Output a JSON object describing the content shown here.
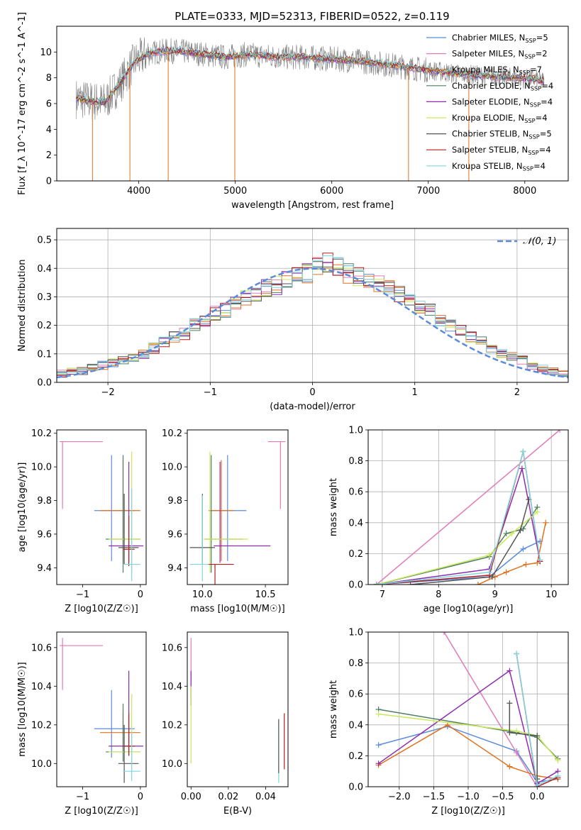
{
  "figure": {
    "title": "PLATE=0333, MJD=52313, FIBERID=0522, z=0.119"
  },
  "models": [
    {
      "label": "Chabrier MILES, N_{SSP}=5",
      "name": "Chabrier MILES",
      "nssp": "5",
      "color": "#5b8cdb"
    },
    {
      "label": "Salpeter MILES, N_{SSP}=2",
      "name": "Salpeter MILES",
      "nssp": "2",
      "color": "#e27cb8"
    },
    {
      "label": "Kroupa MILES, N_{SSP}=7",
      "name": "Kroupa MILES",
      "nssp": "7",
      "color": "#e2711d"
    },
    {
      "label": "Chabrier ELODIE, N_{SSP}=4",
      "name": "Chabrier ELODIE",
      "nssp": "4",
      "color": "#4f7f61"
    },
    {
      "label": "Salpeter ELODIE, N_{SSP}=4",
      "name": "Salpeter ELODIE",
      "nssp": "4",
      "color": "#8e2cb0"
    },
    {
      "label": "Kroupa ELODIE, N_{SSP}=4",
      "name": "Kroupa ELODIE",
      "nssp": "4",
      "color": "#c9e85a"
    },
    {
      "label": "Chabrier STELIB, N_{SSP}=5",
      "name": "Chabrier STELIB",
      "nssp": "5",
      "color": "#555555"
    },
    {
      "label": "Salpeter STELIB, N_{SSP}=4",
      "name": "Salpeter STELIB",
      "nssp": "4",
      "color": "#b41e1e"
    },
    {
      "label": "Kroupa STELIB, N_{SSP}=4",
      "name": "Kroupa STELIB",
      "nssp": "4",
      "color": "#7fd6e0"
    }
  ],
  "chart_data": [
    {
      "id": "spectrum",
      "type": "line",
      "title": "PLATE=0333, MJD=52313, FIBERID=0522, z=0.119",
      "xlabel": "wavelength [Angstrom, rest frame]",
      "ylabel": "Flux [f_λ 10^-17 erg cm^-2 s^-1 A^-1]",
      "xlim": [
        3150,
        8450
      ],
      "ylim": [
        0,
        12
      ],
      "xticks": [
        4000,
        5000,
        6000,
        7000,
        8000
      ],
      "yticks": [
        0,
        2,
        4,
        6,
        8,
        10
      ],
      "data_spectrum_color": "#808080",
      "continuum": {
        "x": [
          3350,
          3500,
          3650,
          3800,
          3950,
          4100,
          4300,
          4500,
          4700,
          4900,
          5100,
          5300,
          5500,
          5700,
          5900,
          6100,
          6300,
          6500,
          6700,
          6900,
          7100,
          7300,
          7500,
          7700,
          7900,
          8100,
          8200
        ],
        "y": [
          6.4,
          6.2,
          6.1,
          7.5,
          9.2,
          9.9,
          10.1,
          10.0,
          9.8,
          9.6,
          9.8,
          9.7,
          9.6,
          9.6,
          9.5,
          9.4,
          9.3,
          9.1,
          8.9,
          8.7,
          8.5,
          8.3,
          8.2,
          8.1,
          8.0,
          7.9,
          7.7
        ]
      },
      "absorption_lines": [
        {
          "x": 3520,
          "y": 0
        },
        {
          "x": 3908,
          "y": 0
        },
        {
          "x": 4305,
          "y": 0
        },
        {
          "x": 4995,
          "y": 0
        },
        {
          "x": 6795,
          "y": 0
        },
        {
          "x": 7420,
          "y": 0
        }
      ]
    },
    {
      "id": "residuals",
      "type": "histogram",
      "xlabel": "(data-model)/error",
      "ylabel": "Normed distribution",
      "xlim": [
        -2.5,
        2.5
      ],
      "ylim": [
        0,
        0.54
      ],
      "xticks": [
        -2,
        -1,
        0,
        1,
        2
      ],
      "yticks": [
        0.0,
        0.1,
        0.2,
        0.3,
        0.4,
        0.5
      ],
      "bin_width": 0.1,
      "reference_curve": {
        "name": "N(0,1)",
        "legend_label": "𝒩(0, 1)",
        "color": "#5b8cdb",
        "mean": 0,
        "sigma": 1
      },
      "reference_histogram": [
        0.03,
        0.04,
        0.04,
        0.05,
        0.06,
        0.07,
        0.08,
        0.09,
        0.1,
        0.12,
        0.14,
        0.16,
        0.17,
        0.2,
        0.22,
        0.24,
        0.25,
        0.28,
        0.3,
        0.31,
        0.33,
        0.34,
        0.36,
        0.37,
        0.38,
        0.4,
        0.42,
        0.4,
        0.38,
        0.37,
        0.35,
        0.34,
        0.33,
        0.31,
        0.29,
        0.27,
        0.25,
        0.22,
        0.2,
        0.18,
        0.16,
        0.14,
        0.12,
        0.1,
        0.09,
        0.08,
        0.06,
        0.05,
        0.04,
        0.03
      ]
    },
    {
      "id": "age-vs-Z",
      "type": "errorbar",
      "xlabel": "Z [log10(Z/Z☉)]",
      "ylabel": "age [log10(age/yr)]",
      "xlim": [
        -1.45,
        0.1
      ],
      "ylim": [
        9.3,
        10.22
      ],
      "xticks": [
        -1,
        0
      ],
      "yticks": [
        9.4,
        9.6,
        9.8,
        10.0,
        10.2
      ],
      "points": [
        {
          "model": 0,
          "x": -0.5,
          "xerr": [
            0.3,
            0.4
          ],
          "y": 9.74,
          "yerr": [
            0.3,
            0.33
          ]
        },
        {
          "model": 1,
          "x": -1.35,
          "xerr": [
            0.05,
            0.7
          ],
          "y": 10.15,
          "yerr": [
            0.4,
            0.0
          ]
        },
        {
          "model": 2,
          "x": -0.3,
          "xerr": [
            0.4,
            0.3
          ],
          "y": 9.74,
          "yerr": [
            0.3,
            0.3
          ]
        },
        {
          "model": 3,
          "x": -0.3,
          "xerr": [
            0.3,
            0.3
          ],
          "y": 9.57,
          "yerr": [
            0.2,
            0.5
          ]
        },
        {
          "model": 4,
          "x": -0.2,
          "xerr": [
            0.35,
            0.25
          ],
          "y": 9.53,
          "yerr": [
            0.1,
            0.5
          ]
        },
        {
          "model": 5,
          "x": -0.15,
          "xerr": [
            0.4,
            0.15
          ],
          "y": 9.57,
          "yerr": [
            0.2,
            0.52
          ]
        },
        {
          "model": 6,
          "x": -0.28,
          "xerr": [
            0.1,
            0.25
          ],
          "y": 9.52,
          "yerr": [
            0.1,
            0.32
          ]
        },
        {
          "model": 7,
          "x": -0.2,
          "xerr": [
            0.1,
            0.1
          ],
          "y": 9.51,
          "yerr": [
            0.1,
            0.2
          ]
        },
        {
          "model": 8,
          "x": -0.15,
          "xerr": [
            0.15,
            0.15
          ],
          "y": 9.42,
          "yerr": [
            0.1,
            0.45
          ]
        }
      ]
    },
    {
      "id": "age-vs-mass",
      "type": "errorbar",
      "xlabel": "mass [log10(M/M☉)]",
      "ylabel": "",
      "xlim": [
        9.88,
        10.68
      ],
      "ylim": [
        9.3,
        10.22
      ],
      "xticks": [
        10.0,
        10.5
      ],
      "yticks": [
        9.4,
        9.6,
        9.8,
        10.0,
        10.2
      ],
      "points": [
        {
          "model": 0,
          "x": 10.2,
          "xerr": [
            0.15,
            0.15
          ],
          "y": 9.74,
          "yerr": [
            0.3,
            0.33
          ]
        },
        {
          "model": 1,
          "x": 10.62,
          "xerr": [
            0.1,
            0.04
          ],
          "y": 10.15,
          "yerr": [
            0.4,
            0.0
          ]
        },
        {
          "model": 2,
          "x": 10.15,
          "xerr": [
            0.1,
            0.1
          ],
          "y": 9.74,
          "yerr": [
            0.3,
            0.3
          ]
        },
        {
          "model": 3,
          "x": 10.07,
          "xerr": [
            0.05,
            0.25
          ],
          "y": 9.57,
          "yerr": [
            0.2,
            0.5
          ]
        },
        {
          "model": 4,
          "x": 10.14,
          "xerr": [
            0.05,
            0.4
          ],
          "y": 9.53,
          "yerr": [
            0.1,
            0.5
          ]
        },
        {
          "model": 5,
          "x": 10.06,
          "xerr": [
            0.05,
            0.3
          ],
          "y": 9.57,
          "yerr": [
            0.2,
            0.52
          ]
        },
        {
          "model": 6,
          "x": 10.0,
          "xerr": [
            0.1,
            0.1
          ],
          "y": 9.52,
          "yerr": [
            0.1,
            0.32
          ]
        },
        {
          "model": 7,
          "x": 10.1,
          "xerr": [
            0.05,
            0.15
          ],
          "y": 9.42,
          "yerr": [
            0.3,
            0.0
          ]
        },
        {
          "model": 8,
          "x": 10.0,
          "xerr": [
            0.1,
            0.05
          ],
          "y": 9.42,
          "yerr": [
            0.1,
            0.41
          ]
        }
      ]
    },
    {
      "id": "weight-vs-age",
      "type": "line",
      "xlabel": "age [log10(age/yr)]",
      "ylabel": "mass weight",
      "xlim": [
        6.75,
        10.3
      ],
      "ylim": [
        0,
        1
      ],
      "xticks": [
        7,
        8,
        9,
        10
      ],
      "yticks": [
        0.0,
        0.2,
        0.4,
        0.6,
        0.8,
        1.0
      ],
      "series": [
        {
          "model": 0,
          "x": [
            6.9,
            8.9,
            9.5,
            9.8
          ],
          "y": [
            0.0,
            0.05,
            0.23,
            0.28
          ]
        },
        {
          "model": 1,
          "x": [
            6.9,
            10.15
          ],
          "y": [
            0.0,
            1.0
          ]
        },
        {
          "model": 2,
          "x": [
            8.7,
            9.0,
            9.2,
            9.55,
            9.75,
            9.9
          ],
          "y": [
            0.0,
            0.05,
            0.08,
            0.13,
            0.14,
            0.4
          ]
        },
        {
          "model": 3,
          "x": [
            6.9,
            8.9,
            9.2,
            9.5,
            9.75
          ],
          "y": [
            0.0,
            0.18,
            0.33,
            0.36,
            0.5
          ]
        },
        {
          "model": 4,
          "x": [
            6.9,
            8.9,
            9.48,
            9.8
          ],
          "y": [
            0.0,
            0.1,
            0.75,
            0.15
          ]
        },
        {
          "model": 5,
          "x": [
            6.9,
            8.9,
            9.3,
            9.75
          ],
          "y": [
            0.0,
            0.19,
            0.33,
            0.47
          ]
        },
        {
          "model": 6,
          "x": [
            7.5,
            8.95,
            9.45,
            9.6
          ],
          "y": [
            0.0,
            0.05,
            0.35,
            0.55
          ]
        },
        {
          "model": 7,
          "x": [
            6.9,
            8.9,
            9.5,
            9.8
          ],
          "y": [
            0.0,
            0.06,
            0.86,
            0.15
          ]
        },
        {
          "model": 8,
          "x": [
            6.9,
            8.9,
            9.5,
            9.8
          ],
          "y": [
            0.0,
            0.08,
            0.86,
            0.16
          ]
        }
      ]
    },
    {
      "id": "mass-vs-Z",
      "type": "errorbar",
      "xlabel": "Z [log10(Z/Z☉)]",
      "ylabel": "mass [log10(M/M☉)]",
      "xlim": [
        -1.45,
        0.1
      ],
      "ylim": [
        9.88,
        10.68
      ],
      "xticks": [
        -1,
        0
      ],
      "yticks": [
        10.0,
        10.2,
        10.4,
        10.6
      ],
      "points": [
        {
          "model": 0,
          "x": -0.5,
          "xerr": [
            0.3,
            0.4
          ],
          "y": 10.18,
          "yerr": [
            0.15,
            0.2
          ]
        },
        {
          "model": 1,
          "x": -1.35,
          "xerr": [
            0.05,
            0.7
          ],
          "y": 10.61,
          "yerr": [
            0.23,
            0.04
          ]
        },
        {
          "model": 2,
          "x": -0.3,
          "xerr": [
            0.4,
            0.3
          ],
          "y": 10.16,
          "yerr": [
            0.1,
            0.1
          ]
        },
        {
          "model": 3,
          "x": -0.3,
          "xerr": [
            0.3,
            0.3
          ],
          "y": 10.06,
          "yerr": [
            0.05,
            0.25
          ]
        },
        {
          "model": 4,
          "x": -0.2,
          "xerr": [
            0.35,
            0.25
          ],
          "y": 10.09,
          "yerr": [
            0.05,
            0.39
          ]
        },
        {
          "model": 5,
          "x": -0.15,
          "xerr": [
            0.4,
            0.15
          ],
          "y": 10.06,
          "yerr": [
            0.05,
            0.3
          ]
        },
        {
          "model": 6,
          "x": -0.28,
          "xerr": [
            0.1,
            0.25
          ],
          "y": 10.0,
          "yerr": [
            0.1,
            0.2
          ]
        },
        {
          "model": 7,
          "x": -0.2,
          "xerr": [
            0.1,
            0.1
          ],
          "y": 10.09,
          "yerr": [
            0.05,
            0.17
          ]
        },
        {
          "model": 8,
          "x": -0.15,
          "xerr": [
            0.15,
            0.15
          ],
          "y": 9.96,
          "yerr": [
            0.05,
            0.2
          ]
        }
      ]
    },
    {
      "id": "mass-vs-ebv",
      "type": "errorbar",
      "xlabel": "E(B-V)",
      "ylabel": "",
      "xlim": [
        -0.002,
        0.052
      ],
      "ylim": [
        9.88,
        10.68
      ],
      "xticks": [
        0.0,
        0.02,
        0.04
      ],
      "yticks": [
        10.0,
        10.2,
        10.4,
        10.6
      ],
      "points": [
        {
          "model": 1,
          "x": 0.0,
          "y": 10.55,
          "yerr": [
            0.2,
            0.1
          ]
        },
        {
          "model": 4,
          "x": 0.0,
          "y": 10.4,
          "yerr": [
            0.1,
            0.08
          ]
        },
        {
          "model": 5,
          "x": 0.0,
          "y": 10.2,
          "yerr": [
            0.2,
            0.2
          ]
        },
        {
          "model": 8,
          "x": 0.047,
          "y": 10.05,
          "yerr": [
            0.15,
            0.17
          ]
        },
        {
          "model": 6,
          "x": 0.047,
          "y": 10.1,
          "yerr": [
            0.15,
            0.13
          ]
        },
        {
          "model": 7,
          "x": 0.05,
          "y": 10.1,
          "yerr": [
            0.13,
            0.16
          ]
        }
      ]
    },
    {
      "id": "weight-vs-Z",
      "type": "line",
      "xlabel": "Z [log10(Z/Z☉)]",
      "ylabel": "mass weight",
      "xlim": [
        -2.45,
        0.45
      ],
      "ylim": [
        0,
        1
      ],
      "xticks": [
        -2.0,
        -1.5,
        -1.0,
        -0.5,
        0.0
      ],
      "yticks": [
        0.0,
        0.2,
        0.4,
        0.6,
        0.8,
        1.0
      ],
      "series": [
        {
          "model": 0,
          "x": [
            -2.3,
            -1.3,
            -0.3,
            0.0,
            0.3
          ],
          "y": [
            0.27,
            0.39,
            0.23,
            0.03,
            0.05
          ]
        },
        {
          "model": 1,
          "x": [
            -1.35,
            -0.3,
            0.0
          ],
          "y": [
            1.0,
            0.22,
            0.0
          ]
        },
        {
          "model": 2,
          "x": [
            -2.3,
            -1.3,
            -0.4,
            0.0,
            0.3
          ],
          "y": [
            0.14,
            0.4,
            0.13,
            0.07,
            0.05
          ]
        },
        {
          "model": 3,
          "x": [
            -2.3,
            -0.3,
            0.0,
            0.3
          ],
          "y": [
            0.5,
            0.35,
            0.32,
            0.18
          ]
        },
        {
          "model": 4,
          "x": [
            -2.3,
            -0.4,
            0.0,
            0.3
          ],
          "y": [
            0.15,
            0.75,
            0.02,
            0.1
          ]
        },
        {
          "model": 5,
          "x": [
            -2.3,
            -0.3,
            0.0,
            0.3
          ],
          "y": [
            0.47,
            0.36,
            0.33,
            0.17
          ]
        },
        {
          "model": 6,
          "x": [
            -0.4,
            -0.4,
            0.0,
            0.0
          ],
          "y": [
            0.54,
            0.35,
            0.33,
            0.05
          ]
        },
        {
          "model": 7,
          "x": [
            -0.3,
            0.0,
            0.3
          ],
          "y": [
            0.86,
            0.0,
            0.06
          ]
        },
        {
          "model": 8,
          "x": [
            -0.3,
            0.0,
            0.3
          ],
          "y": [
            0.86,
            0.01,
            0.07
          ]
        }
      ]
    }
  ]
}
